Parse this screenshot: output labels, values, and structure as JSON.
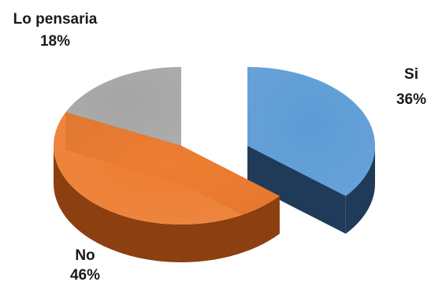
{
  "chart_data": {
    "type": "pie",
    "style": "3d-exploded",
    "slices": [
      {
        "label": "Si",
        "value": 36,
        "value_label": "36%",
        "color": "#5b9bd5",
        "side_color": "#203b5a"
      },
      {
        "label": "No",
        "value": 46,
        "value_label": "46%",
        "color": "#ed7d31",
        "side_color": "#8c3f10"
      },
      {
        "label": "Lo pensaria",
        "value": 18,
        "value_label": "18%",
        "color": "#a5a5a5",
        "side_color": "#3a3a3a"
      }
    ],
    "legend": "none"
  }
}
